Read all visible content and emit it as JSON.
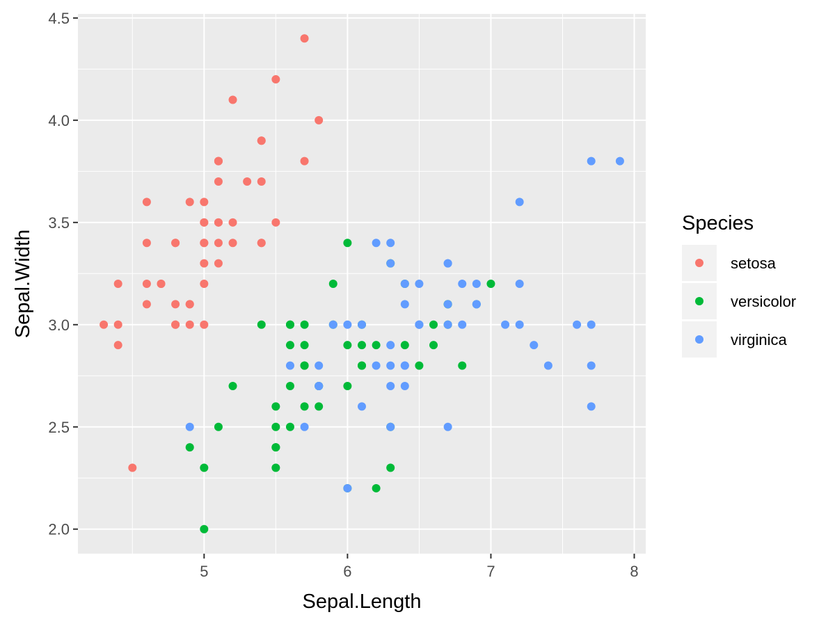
{
  "chart_data": {
    "type": "scatter",
    "title": "",
    "xlabel": "Sepal.Length",
    "ylabel": "Sepal.Width",
    "xlim": [
      4.12,
      8.08
    ],
    "ylim": [
      1.88,
      4.52
    ],
    "xticks": [
      5,
      6,
      7,
      8
    ],
    "xtick_labels": [
      "5",
      "6",
      "7",
      "8"
    ],
    "yticks": [
      2.0,
      2.5,
      3.0,
      3.5,
      4.0,
      4.5
    ],
    "ytick_labels": [
      "2.0",
      "2.5",
      "3.0",
      "3.5",
      "4.0",
      "4.5"
    ],
    "grid": true,
    "legend": {
      "title": "Species",
      "position": "right"
    },
    "series": [
      {
        "name": "setosa",
        "color": "#F8766D",
        "points": [
          [
            5.1,
            3.5
          ],
          [
            4.9,
            3.0
          ],
          [
            4.7,
            3.2
          ],
          [
            4.6,
            3.1
          ],
          [
            5.0,
            3.6
          ],
          [
            5.4,
            3.9
          ],
          [
            4.6,
            3.4
          ],
          [
            5.0,
            3.4
          ],
          [
            4.4,
            2.9
          ],
          [
            4.9,
            3.1
          ],
          [
            5.4,
            3.7
          ],
          [
            4.8,
            3.4
          ],
          [
            4.8,
            3.0
          ],
          [
            4.3,
            3.0
          ],
          [
            5.8,
            4.0
          ],
          [
            5.7,
            4.4
          ],
          [
            5.4,
            3.9
          ],
          [
            5.1,
            3.5
          ],
          [
            5.7,
            3.8
          ],
          [
            5.1,
            3.8
          ],
          [
            5.4,
            3.4
          ],
          [
            5.1,
            3.7
          ],
          [
            4.6,
            3.6
          ],
          [
            5.1,
            3.3
          ],
          [
            4.8,
            3.4
          ],
          [
            5.0,
            3.0
          ],
          [
            5.0,
            3.4
          ],
          [
            5.2,
            3.5
          ],
          [
            5.2,
            3.4
          ],
          [
            4.7,
            3.2
          ],
          [
            4.8,
            3.1
          ],
          [
            5.4,
            3.4
          ],
          [
            5.2,
            4.1
          ],
          [
            5.5,
            4.2
          ],
          [
            4.9,
            3.1
          ],
          [
            5.0,
            3.2
          ],
          [
            5.5,
            3.5
          ],
          [
            4.9,
            3.6
          ],
          [
            4.4,
            3.0
          ],
          [
            5.1,
            3.4
          ],
          [
            5.0,
            3.5
          ],
          [
            4.5,
            2.3
          ],
          [
            4.4,
            3.2
          ],
          [
            5.0,
            3.5
          ],
          [
            5.1,
            3.8
          ],
          [
            4.8,
            3.0
          ],
          [
            5.1,
            3.8
          ],
          [
            4.6,
            3.2
          ],
          [
            5.3,
            3.7
          ],
          [
            5.0,
            3.3
          ]
        ]
      },
      {
        "name": "versicolor",
        "color": "#00BA38",
        "points": [
          [
            7.0,
            3.2
          ],
          [
            6.4,
            3.2
          ],
          [
            6.9,
            3.1
          ],
          [
            5.5,
            2.3
          ],
          [
            6.5,
            2.8
          ],
          [
            5.7,
            2.8
          ],
          [
            6.3,
            3.3
          ],
          [
            4.9,
            2.4
          ],
          [
            6.6,
            2.9
          ],
          [
            5.2,
            2.7
          ],
          [
            5.0,
            2.0
          ],
          [
            5.9,
            3.0
          ],
          [
            6.0,
            2.2
          ],
          [
            6.1,
            2.9
          ],
          [
            5.6,
            2.9
          ],
          [
            6.7,
            3.1
          ],
          [
            5.6,
            3.0
          ],
          [
            5.8,
            2.7
          ],
          [
            6.2,
            2.2
          ],
          [
            5.6,
            2.5
          ],
          [
            5.9,
            3.2
          ],
          [
            6.1,
            2.8
          ],
          [
            6.3,
            2.5
          ],
          [
            6.1,
            2.8
          ],
          [
            6.4,
            2.9
          ],
          [
            6.6,
            3.0
          ],
          [
            6.8,
            2.8
          ],
          [
            6.7,
            3.0
          ],
          [
            6.0,
            2.9
          ],
          [
            5.7,
            2.6
          ],
          [
            5.5,
            2.4
          ],
          [
            5.5,
            2.4
          ],
          [
            5.8,
            2.7
          ],
          [
            6.0,
            2.7
          ],
          [
            5.4,
            3.0
          ],
          [
            6.0,
            3.4
          ],
          [
            6.7,
            3.1
          ],
          [
            6.3,
            2.3
          ],
          [
            5.6,
            3.0
          ],
          [
            5.5,
            2.5
          ],
          [
            5.5,
            2.6
          ],
          [
            6.1,
            3.0
          ],
          [
            5.8,
            2.6
          ],
          [
            5.0,
            2.3
          ],
          [
            5.6,
            2.7
          ],
          [
            5.7,
            3.0
          ],
          [
            5.7,
            2.9
          ],
          [
            6.2,
            2.9
          ],
          [
            5.1,
            2.5
          ],
          [
            5.7,
            2.8
          ]
        ]
      },
      {
        "name": "virginica",
        "color": "#619CFF",
        "points": [
          [
            6.3,
            3.3
          ],
          [
            5.8,
            2.7
          ],
          [
            7.1,
            3.0
          ],
          [
            6.3,
            2.9
          ],
          [
            6.5,
            3.0
          ],
          [
            7.6,
            3.0
          ],
          [
            4.9,
            2.5
          ],
          [
            7.3,
            2.9
          ],
          [
            6.7,
            2.5
          ],
          [
            7.2,
            3.6
          ],
          [
            6.5,
            3.2
          ],
          [
            6.4,
            2.7
          ],
          [
            6.8,
            3.0
          ],
          [
            5.7,
            2.5
          ],
          [
            5.8,
            2.8
          ],
          [
            6.4,
            3.2
          ],
          [
            6.5,
            3.0
          ],
          [
            7.7,
            3.8
          ],
          [
            7.7,
            2.6
          ],
          [
            6.0,
            2.2
          ],
          [
            6.9,
            3.2
          ],
          [
            5.6,
            2.8
          ],
          [
            7.7,
            2.8
          ],
          [
            6.3,
            2.7
          ],
          [
            6.7,
            3.3
          ],
          [
            7.2,
            3.2
          ],
          [
            6.2,
            2.8
          ],
          [
            6.1,
            3.0
          ],
          [
            6.4,
            2.8
          ],
          [
            7.2,
            3.0
          ],
          [
            7.4,
            2.8
          ],
          [
            7.9,
            3.8
          ],
          [
            6.4,
            2.8
          ],
          [
            6.3,
            2.8
          ],
          [
            6.1,
            2.6
          ],
          [
            7.7,
            3.0
          ],
          [
            6.3,
            3.4
          ],
          [
            6.4,
            3.1
          ],
          [
            6.0,
            3.0
          ],
          [
            6.9,
            3.1
          ],
          [
            6.7,
            3.1
          ],
          [
            6.9,
            3.1
          ],
          [
            5.8,
            2.7
          ],
          [
            6.8,
            3.2
          ],
          [
            6.7,
            3.3
          ],
          [
            6.7,
            3.0
          ],
          [
            6.3,
            2.5
          ],
          [
            6.5,
            3.0
          ],
          [
            6.2,
            3.4
          ],
          [
            5.9,
            3.0
          ]
        ]
      }
    ]
  },
  "colors": {
    "panel_background": "#EBEBEB",
    "grid": "#FFFFFF",
    "tick_text": "#4D4D4D",
    "tick_mark": "#333333",
    "legend_key_background": "#F2F2F2"
  }
}
